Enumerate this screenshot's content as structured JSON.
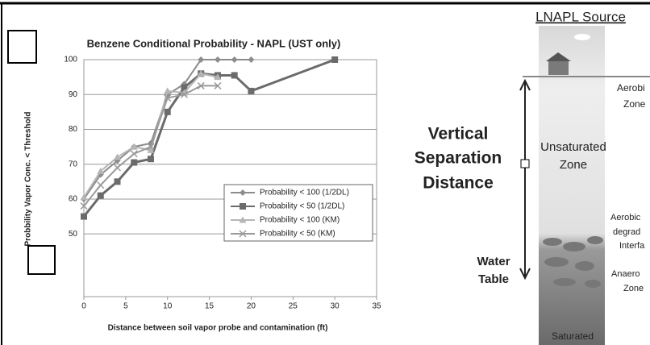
{
  "chart_data": {
    "type": "line",
    "title": "Benzene Conditional Probability - NAPL (UST only)",
    "x_label": "Distance between soil vapor probe and contamination (ft)",
    "y_label": "Probbility Vapor Conc. < Threshold",
    "xlim": [
      0,
      35
    ],
    "xticks": [
      0,
      5,
      10,
      15,
      20,
      25,
      30,
      35
    ],
    "ylim": [
      32,
      100
    ],
    "yticks": [
      50,
      60,
      70,
      80,
      90,
      100
    ],
    "grid": true,
    "legend": "lower right",
    "series": [
      {
        "name": "Probability < 100 (1/2DL)",
        "color": "#8c8c8c",
        "marker": "diamond",
        "x": [
          0,
          2,
          4,
          6,
          8,
          10,
          12,
          14,
          16,
          18,
          20
        ],
        "values": [
          60,
          67,
          71,
          75,
          76,
          90,
          93,
          100,
          100,
          100,
          100
        ]
      },
      {
        "name": "Probability < 50 (1/2DL)",
        "color": "#6b6b6b",
        "marker": "square",
        "x": [
          0,
          2,
          4,
          6,
          8,
          10,
          12,
          14,
          16,
          18,
          20,
          30
        ],
        "values": [
          55,
          61,
          65,
          70.5,
          71.5,
          85,
          92,
          96,
          95.5,
          95.5,
          91,
          100
        ]
      },
      {
        "name": "Probability < 100 (KM)",
        "color": "#b5b5b5",
        "marker": "triangle",
        "x": [
          0,
          2,
          4,
          6,
          8,
          10,
          12,
          14,
          16
        ],
        "values": [
          60.5,
          68,
          72,
          75,
          74,
          91,
          90.5,
          96,
          95
        ]
      },
      {
        "name": "Probability < 50 (KM)",
        "color": "#9a9a9a",
        "marker": "x",
        "x": [
          0,
          2,
          4,
          6,
          8,
          10,
          12,
          14,
          16
        ],
        "values": [
          58,
          64,
          69,
          73,
          75,
          89,
          90,
          92.5,
          92.5
        ]
      }
    ]
  },
  "diagram": {
    "heading": "LNAPL Source",
    "separation": [
      "Vertical",
      "Separation",
      "Distance"
    ],
    "unsaturated": [
      "Unsaturated",
      "Zone"
    ],
    "aerobic_zone": [
      "Aerobi",
      "Zone"
    ],
    "interface": [
      "Aerobic",
      "degrad",
      "Interfa"
    ],
    "anaerobic_zone": [
      "Anaero",
      "Zone"
    ],
    "water_table": [
      "Water",
      "Table"
    ],
    "saturated": "Saturated"
  }
}
